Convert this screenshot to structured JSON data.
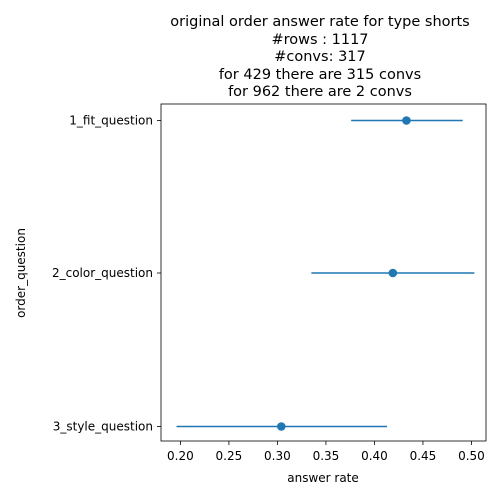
{
  "chart_data": {
    "type": "pointplot",
    "title_lines": [
      "original order answer rate for type shorts",
      "#rows : 1117",
      "#convs: 317",
      "for 429 there are 315 convs",
      "for 962 there are 2 convs"
    ],
    "xlabel": "answer rate",
    "ylabel": "order_question",
    "categories": [
      "1_fit_question",
      "2_color_question",
      "3_style_question"
    ],
    "points": [
      {
        "category": "1_fit_question",
        "value": 0.433,
        "ci_low": 0.376,
        "ci_high": 0.491
      },
      {
        "category": "2_color_question",
        "value": 0.419,
        "ci_low": 0.335,
        "ci_high": 0.503
      },
      {
        "category": "3_style_question",
        "value": 0.304,
        "ci_low": 0.196,
        "ci_high": 0.413
      }
    ],
    "xlim": [
      0.18,
      0.515
    ],
    "xticks": [
      0.2,
      0.25,
      0.3,
      0.35,
      0.4,
      0.45,
      0.5
    ],
    "xtick_labels": [
      "0.20",
      "0.25",
      "0.30",
      "0.35",
      "0.40",
      "0.45",
      "0.50"
    ],
    "color": "#1f77b4",
    "grid": false,
    "legend": "none"
  }
}
